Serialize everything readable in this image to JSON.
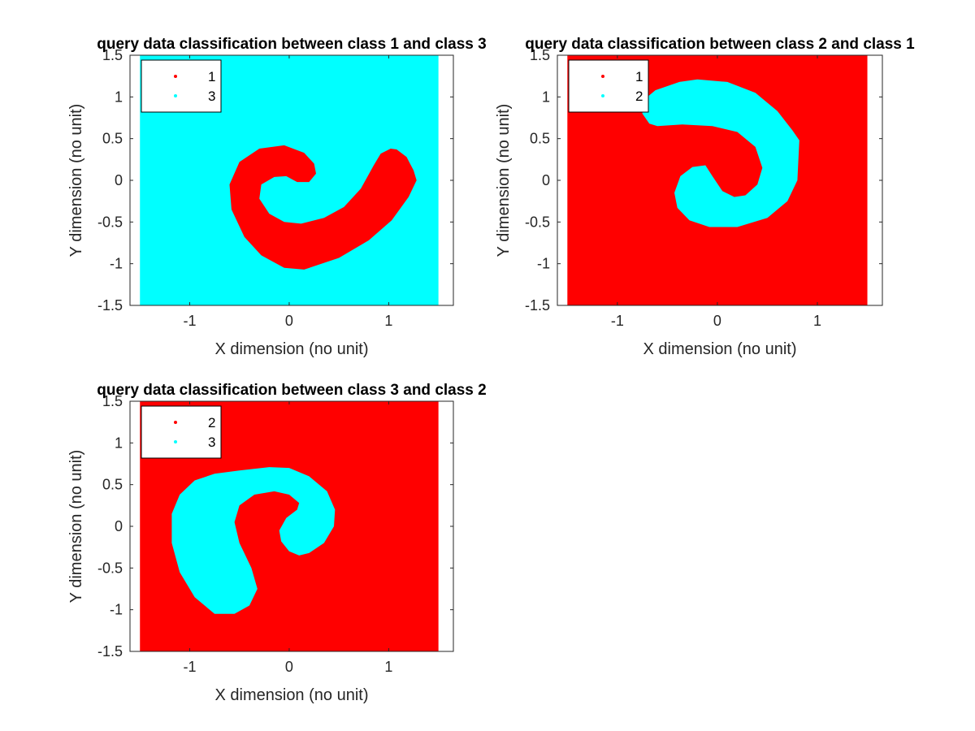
{
  "figure": {
    "background": "#ffffff",
    "axes_color": "#262626"
  },
  "chart_data": [
    {
      "type": "scatter",
      "subtype": "decision-region",
      "title": "query data classification between class 1 and class 3",
      "xlabel": "X dimension (no unit)",
      "ylabel": "Y dimension (no unit)",
      "xlim": [
        -1.6,
        1.65
      ],
      "ylim": [
        -1.5,
        1.5
      ],
      "xticks": [
        -1,
        0,
        1
      ],
      "xtick_labels": [
        "-1",
        "0",
        "1"
      ],
      "yticks": [
        1.5,
        1,
        0.5,
        0,
        -0.5,
        -1,
        -1.5
      ],
      "ytick_labels": [
        "1.5",
        "1",
        "0.5",
        "0",
        "-0.5",
        "-1",
        "-1.5"
      ],
      "region_extent": {
        "x": [
          -1.5,
          1.5
        ],
        "y": [
          -1.5,
          1.5
        ]
      },
      "legend": {
        "location": "top-left",
        "entries": [
          {
            "label": "1",
            "color": "#ff0000"
          },
          {
            "label": "3",
            "color": "#00ffff"
          }
        ]
      },
      "background_class": {
        "label": "3",
        "color": "#00ffff"
      },
      "region_class": {
        "label": "1",
        "color": "#ff0000"
      },
      "region_polygon": [
        [
          1.02,
          0.38
        ],
        [
          1.08,
          0.37
        ],
        [
          1.18,
          0.28
        ],
        [
          1.25,
          0.12
        ],
        [
          1.28,
          0.0
        ],
        [
          1.2,
          -0.2
        ],
        [
          1.03,
          -0.48
        ],
        [
          0.8,
          -0.72
        ],
        [
          0.5,
          -0.93
        ],
        [
          0.15,
          -1.07
        ],
        [
          -0.05,
          -1.05
        ],
        [
          -0.28,
          -0.9
        ],
        [
          -0.45,
          -0.68
        ],
        [
          -0.58,
          -0.35
        ],
        [
          -0.6,
          -0.05
        ],
        [
          -0.5,
          0.22
        ],
        [
          -0.3,
          0.38
        ],
        [
          -0.05,
          0.42
        ],
        [
          0.15,
          0.33
        ],
        [
          0.25,
          0.2
        ],
        [
          0.27,
          0.08
        ],
        [
          0.2,
          -0.02
        ],
        [
          0.08,
          -0.02
        ],
        [
          -0.03,
          0.05
        ],
        [
          -0.15,
          0.04
        ],
        [
          -0.28,
          -0.05
        ],
        [
          -0.3,
          -0.22
        ],
        [
          -0.2,
          -0.4
        ],
        [
          -0.05,
          -0.5
        ],
        [
          0.12,
          -0.52
        ],
        [
          0.35,
          -0.45
        ],
        [
          0.55,
          -0.32
        ],
        [
          0.72,
          -0.1
        ],
        [
          0.85,
          0.18
        ],
        [
          0.92,
          0.32
        ]
      ]
    },
    {
      "type": "scatter",
      "subtype": "decision-region",
      "title": "query data classification between class 2 and class 1",
      "xlabel": "X dimension (no unit)",
      "ylabel": "Y dimension (no unit)",
      "xlim": [
        -1.6,
        1.65
      ],
      "ylim": [
        -1.5,
        1.5
      ],
      "xticks": [
        -1,
        0,
        1
      ],
      "xtick_labels": [
        "-1",
        "0",
        "1"
      ],
      "yticks": [
        1.5,
        1,
        0.5,
        0,
        -0.5,
        -1,
        -1.5
      ],
      "ytick_labels": [
        "1.5",
        "1",
        "0.5",
        "0",
        "-0.5",
        "-1",
        "-1.5"
      ],
      "region_extent": {
        "x": [
          -1.5,
          1.5
        ],
        "y": [
          -1.5,
          1.5
        ]
      },
      "legend": {
        "location": "top-left",
        "entries": [
          {
            "label": "1",
            "color": "#ff0000"
          },
          {
            "label": "2",
            "color": "#00ffff"
          }
        ]
      },
      "background_class": {
        "label": "1",
        "color": "#ff0000"
      },
      "region_class": {
        "label": "2",
        "color": "#00ffff"
      },
      "region_polygon": [
        [
          -0.75,
          0.95
        ],
        [
          -0.62,
          1.08
        ],
        [
          -0.38,
          1.18
        ],
        [
          -0.2,
          1.21
        ],
        [
          0.1,
          1.18
        ],
        [
          0.38,
          1.05
        ],
        [
          0.6,
          0.83
        ],
        [
          0.75,
          0.6
        ],
        [
          0.82,
          0.48
        ],
        [
          0.8,
          0.0
        ],
        [
          0.7,
          -0.25
        ],
        [
          0.5,
          -0.45
        ],
        [
          0.2,
          -0.56
        ],
        [
          -0.08,
          -0.56
        ],
        [
          -0.28,
          -0.48
        ],
        [
          -0.4,
          -0.33
        ],
        [
          -0.43,
          -0.15
        ],
        [
          -0.37,
          0.05
        ],
        [
          -0.25,
          0.16
        ],
        [
          -0.12,
          0.18
        ],
        [
          -0.05,
          0.05
        ],
        [
          0.05,
          -0.13
        ],
        [
          0.17,
          -0.2
        ],
        [
          0.28,
          -0.18
        ],
        [
          0.4,
          -0.05
        ],
        [
          0.45,
          0.15
        ],
        [
          0.38,
          0.4
        ],
        [
          0.2,
          0.58
        ],
        [
          -0.05,
          0.65
        ],
        [
          -0.35,
          0.67
        ],
        [
          -0.6,
          0.65
        ],
        [
          -0.68,
          0.68
        ],
        [
          -0.75,
          0.8
        ]
      ]
    },
    {
      "type": "scatter",
      "subtype": "decision-region",
      "title": "query data classification between class 3 and class 2",
      "xlabel": "X dimension (no unit)",
      "ylabel": "Y dimension (no unit)",
      "xlim": [
        -1.6,
        1.65
      ],
      "ylim": [
        -1.5,
        1.5
      ],
      "xticks": [
        -1,
        0,
        1
      ],
      "xtick_labels": [
        "-1",
        "0",
        "1"
      ],
      "yticks": [
        1.5,
        1,
        0.5,
        0,
        -0.5,
        -1,
        -1.5
      ],
      "ytick_labels": [
        "1.5",
        "1",
        "0.5",
        "0",
        "-0.5",
        "-1",
        "-1.5"
      ],
      "region_extent": {
        "x": [
          -1.5,
          1.5
        ],
        "y": [
          -1.5,
          1.5
        ]
      },
      "legend": {
        "location": "top-left",
        "entries": [
          {
            "label": "2",
            "color": "#ff0000"
          },
          {
            "label": "3",
            "color": "#00ffff"
          }
        ]
      },
      "background_class": {
        "label": "2",
        "color": "#ff0000"
      },
      "region_class": {
        "label": "3",
        "color": "#00ffff"
      },
      "region_polygon": [
        [
          -1.1,
          0.38
        ],
        [
          -0.95,
          0.55
        ],
        [
          -0.75,
          0.63
        ],
        [
          -0.5,
          0.67
        ],
        [
          -0.2,
          0.71
        ],
        [
          0.0,
          0.7
        ],
        [
          0.2,
          0.6
        ],
        [
          0.38,
          0.42
        ],
        [
          0.46,
          0.2
        ],
        [
          0.45,
          0.0
        ],
        [
          0.35,
          -0.2
        ],
        [
          0.2,
          -0.32
        ],
        [
          0.1,
          -0.35
        ],
        [
          0.0,
          -0.3
        ],
        [
          -0.08,
          -0.18
        ],
        [
          -0.1,
          -0.05
        ],
        [
          -0.03,
          0.1
        ],
        [
          0.08,
          0.2
        ],
        [
          0.1,
          0.28
        ],
        [
          0.0,
          0.38
        ],
        [
          -0.15,
          0.42
        ],
        [
          -0.35,
          0.38
        ],
        [
          -0.5,
          0.25
        ],
        [
          -0.55,
          0.05
        ],
        [
          -0.5,
          -0.2
        ],
        [
          -0.38,
          -0.5
        ],
        [
          -0.32,
          -0.75
        ],
        [
          -0.4,
          -0.95
        ],
        [
          -0.55,
          -1.05
        ],
        [
          -0.75,
          -1.05
        ],
        [
          -0.95,
          -0.85
        ],
        [
          -1.1,
          -0.55
        ],
        [
          -1.18,
          -0.2
        ],
        [
          -1.18,
          0.15
        ]
      ]
    }
  ]
}
